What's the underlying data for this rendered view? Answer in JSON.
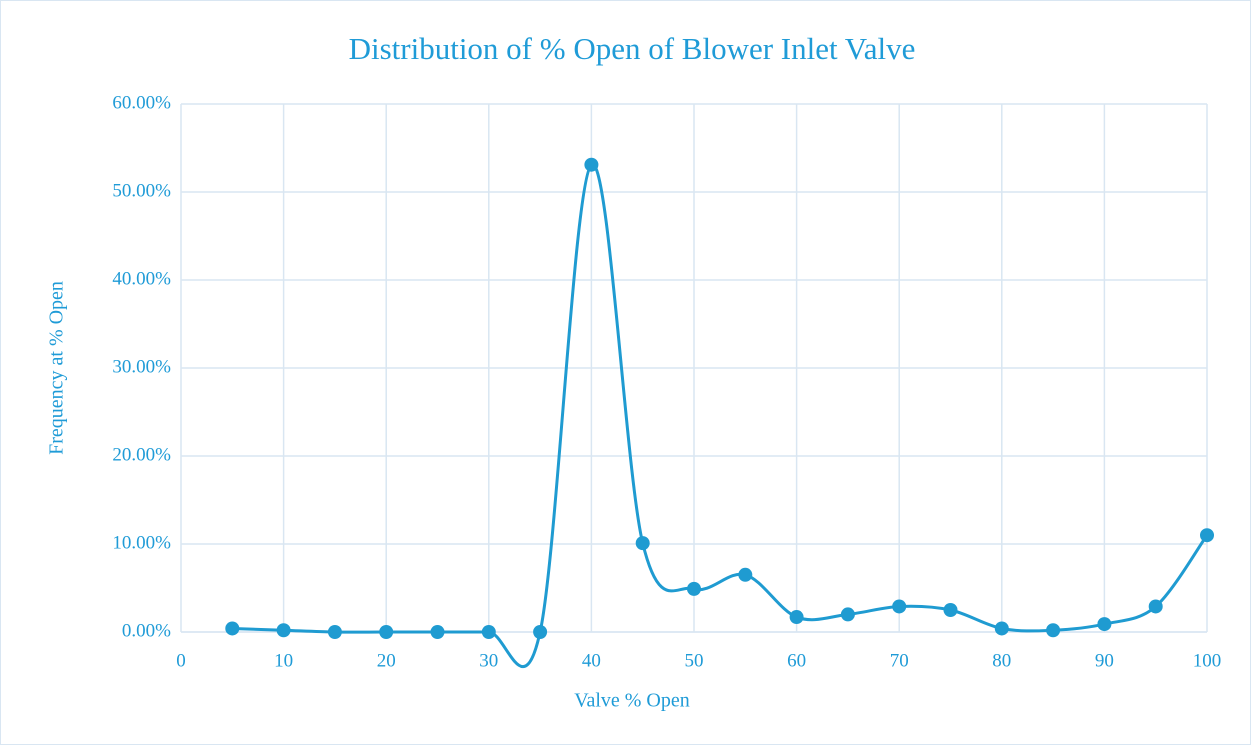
{
  "chart_data": {
    "type": "line",
    "title": "Distribution of % Open of Blower Inlet Valve",
    "x_label": "Valve % Open",
    "y_label": "Frequency at % Open",
    "x": [
      5,
      10,
      15,
      20,
      25,
      30,
      35,
      40,
      45,
      50,
      55,
      60,
      65,
      70,
      75,
      80,
      85,
      90,
      95,
      100
    ],
    "series": [
      {
        "name": "Frequency",
        "color": "#1f9bd1",
        "values": [
          0.4,
          0.2,
          0,
          0,
          0,
          0,
          0,
          53.1,
          10.1,
          4.9,
          6.5,
          1.7,
          2.0,
          2.9,
          2.5,
          0.4,
          0.2,
          0.9,
          2.9,
          11.0
        ]
      }
    ],
    "xlim": [
      0,
      100
    ],
    "xticks": [
      0,
      10,
      20,
      30,
      40,
      50,
      60,
      70,
      80,
      90,
      100
    ],
    "ylim": [
      0,
      60
    ],
    "yticks": [
      {
        "value": 0,
        "label": "0.00%"
      },
      {
        "value": 10,
        "label": "10.00%"
      },
      {
        "value": 20,
        "label": "20.00%"
      },
      {
        "value": 30,
        "label": "30.00%"
      },
      {
        "value": 40,
        "label": "40.00%"
      },
      {
        "value": 50,
        "label": "50.00%"
      },
      {
        "value": 60,
        "label": "60.00%"
      }
    ],
    "grid": true,
    "smooth": true
  }
}
